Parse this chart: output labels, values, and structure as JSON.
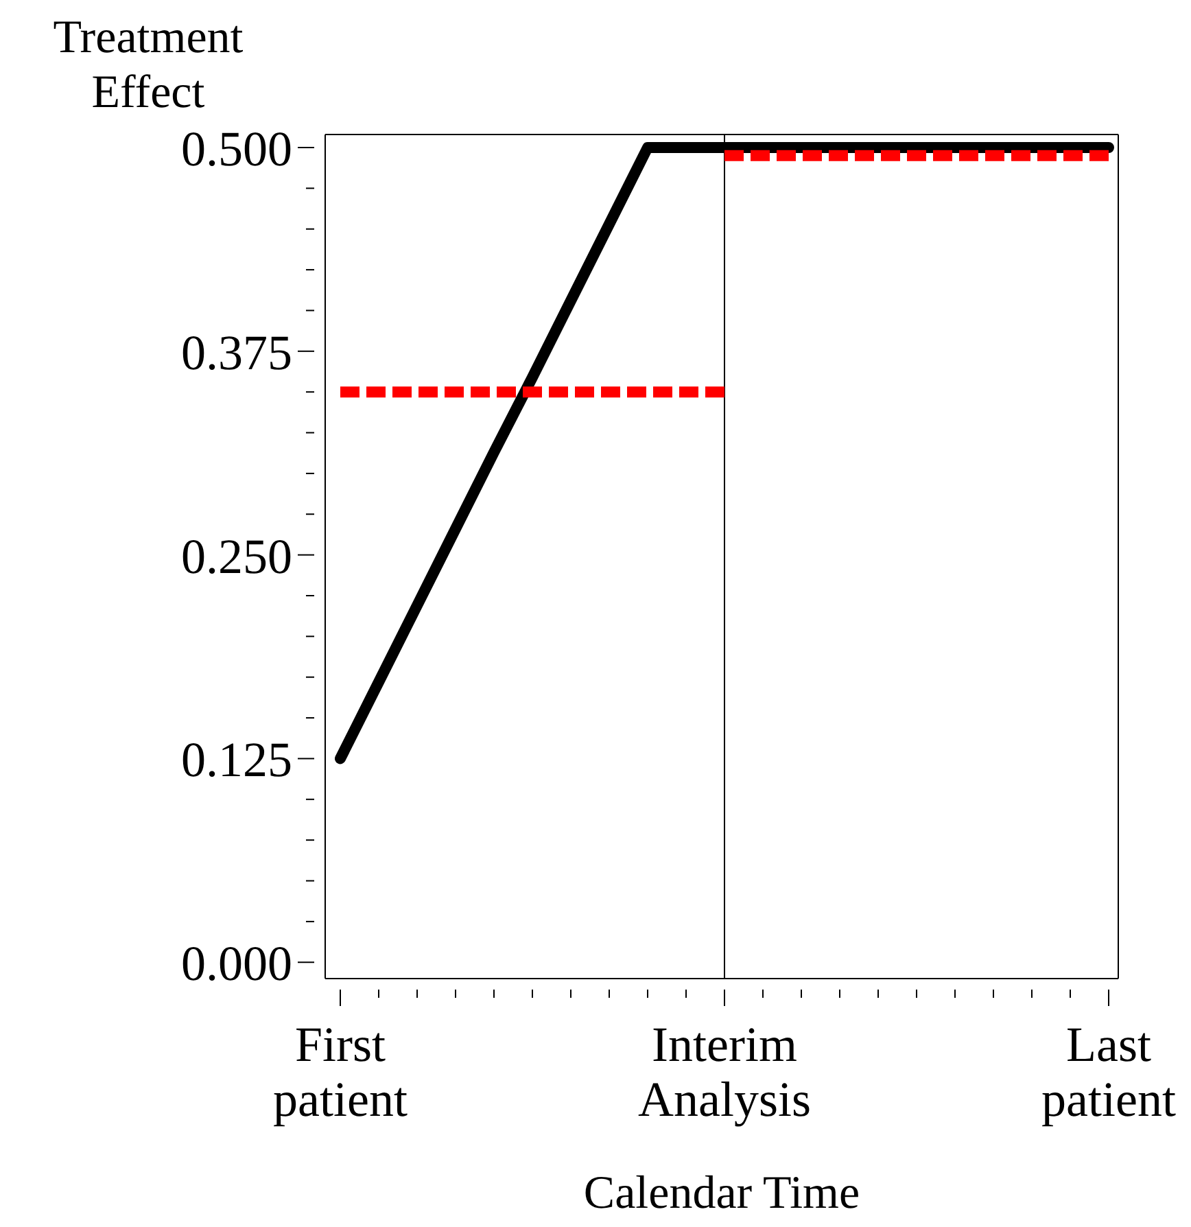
{
  "chart_data": {
    "type": "line",
    "ylabel": "Treatment Effect",
    "xlabel": "Calendar Time",
    "categories": [
      "First patient",
      null,
      null,
      null,
      null,
      null,
      null,
      null,
      null,
      null,
      "Interim Analysis",
      null,
      null,
      null,
      null,
      null,
      null,
      null,
      null,
      null,
      "Last patient"
    ],
    "ylim": [
      -0.01,
      0.508
    ],
    "yticks": [
      {
        "value": 0,
        "label": "0.000"
      },
      {
        "value": 0.025,
        "label": null
      },
      {
        "value": 0.05,
        "label": null
      },
      {
        "value": 0.075,
        "label": null
      },
      {
        "value": 0.1,
        "label": null
      },
      {
        "value": 0.125,
        "label": "0.125"
      },
      {
        "value": 0.15,
        "label": null
      },
      {
        "value": 0.175,
        "label": null
      },
      {
        "value": 0.2,
        "label": null
      },
      {
        "value": 0.225,
        "label": null
      },
      {
        "value": 0.25,
        "label": "0.250"
      },
      {
        "value": 0.275,
        "label": null
      },
      {
        "value": 0.3,
        "label": null
      },
      {
        "value": 0.325,
        "label": null
      },
      {
        "value": 0.35,
        "label": null
      },
      {
        "value": 0.375,
        "label": "0.375"
      },
      {
        "value": 0.4,
        "label": null
      },
      {
        "value": 0.425,
        "label": null
      },
      {
        "value": 0.45,
        "label": null
      },
      {
        "value": 0.475,
        "label": null
      },
      {
        "value": 0.5,
        "label": "0.500"
      }
    ],
    "ref_lines": [
      {
        "axis": "x",
        "value": "Interim Analysis",
        "color": "#000000"
      }
    ],
    "series": [
      {
        "color": "#000000",
        "line_style": "solid",
        "values": [
          0.125,
          0.172,
          0.219,
          0.266,
          0.313,
          0.359,
          0.406,
          0.453,
          0.5,
          0.5,
          0.5,
          0.5,
          0.5,
          0.5,
          0.5,
          0.5,
          0.5,
          0.5,
          0.5,
          0.5,
          0.5
        ]
      },
      {
        "color": "#ff0000",
        "line_style": "dashed",
        "values": [
          0.35,
          0.35,
          0.35,
          0.35,
          0.35,
          0.35,
          0.35,
          0.35,
          0.35,
          0.35,
          0.35,
          null,
          null,
          null,
          null,
          null,
          null,
          null,
          null,
          null,
          null
        ]
      },
      {
        "color": "#ff0000",
        "line_style": "dashed",
        "values": [
          null,
          null,
          null,
          null,
          null,
          null,
          null,
          null,
          null,
          null,
          0.495,
          0.495,
          0.495,
          0.495,
          0.495,
          0.495,
          0.495,
          0.495,
          0.495,
          0.495,
          0.495
        ]
      }
    ]
  }
}
